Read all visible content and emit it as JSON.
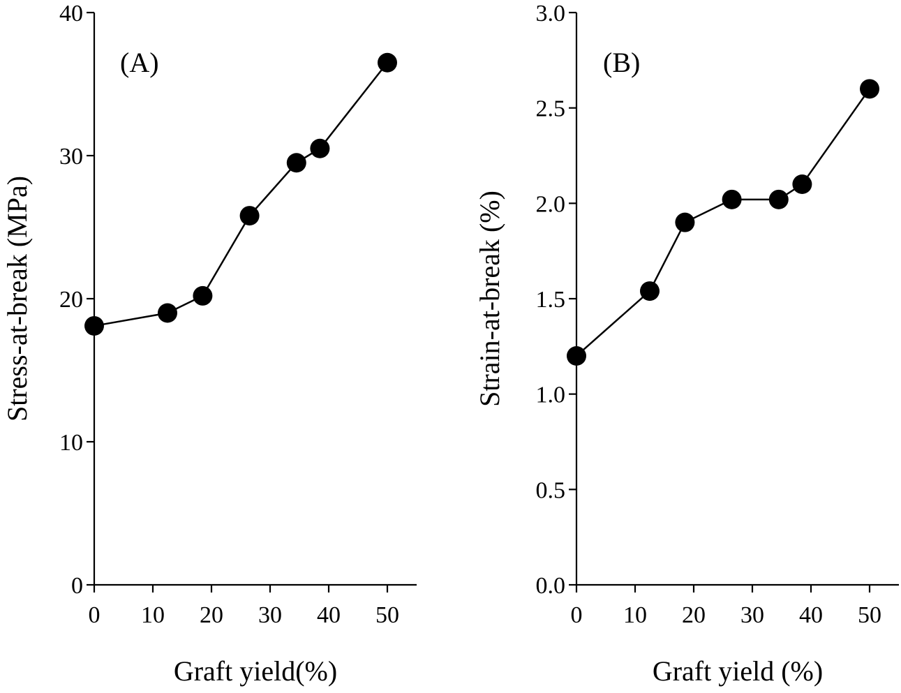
{
  "chart_data": [
    {
      "type": "line",
      "panel_label": "(A)",
      "xlabel": "Graft yield(%)",
      "ylabel": "Stress-at-break (MPa)",
      "xlim": [
        0,
        55
      ],
      "ylim": [
        0,
        40
      ],
      "xticks": [
        0,
        10,
        20,
        30,
        40,
        50
      ],
      "yticks": [
        0,
        10,
        20,
        30,
        40
      ],
      "xtick_labels": [
        "0",
        "10",
        "20",
        "30",
        "40",
        "50"
      ],
      "ytick_labels": [
        "0",
        "10",
        "20",
        "30",
        "40"
      ],
      "grid": false,
      "series": [
        {
          "x": [
            0,
            12.5,
            18.5,
            26.5,
            34.5,
            38.5,
            50
          ],
          "y": [
            18.1,
            19.0,
            20.2,
            25.8,
            29.5,
            30.5,
            36.5
          ]
        }
      ]
    },
    {
      "type": "line",
      "panel_label": "(B)",
      "xlabel": "Graft yield (%)",
      "ylabel": "Strain-at-break (%)",
      "xlim": [
        0,
        55
      ],
      "ylim": [
        0,
        3
      ],
      "xticks": [
        0,
        10,
        20,
        30,
        40,
        50
      ],
      "yticks": [
        0,
        0.5,
        1,
        1.5,
        2,
        2.5,
        3
      ],
      "xtick_labels": [
        "0",
        "10",
        "20",
        "30",
        "40",
        "50"
      ],
      "ytick_labels": [
        "0.0",
        "0.5",
        "1.0",
        "1.5",
        "2.0",
        "2.5",
        "3.0"
      ],
      "grid": false,
      "series": [
        {
          "x": [
            0,
            12.5,
            18.5,
            26.5,
            34.5,
            38.5,
            50
          ],
          "y": [
            1.2,
            1.54,
            1.9,
            2.02,
            2.02,
            2.1,
            2.6
          ]
        }
      ]
    }
  ]
}
